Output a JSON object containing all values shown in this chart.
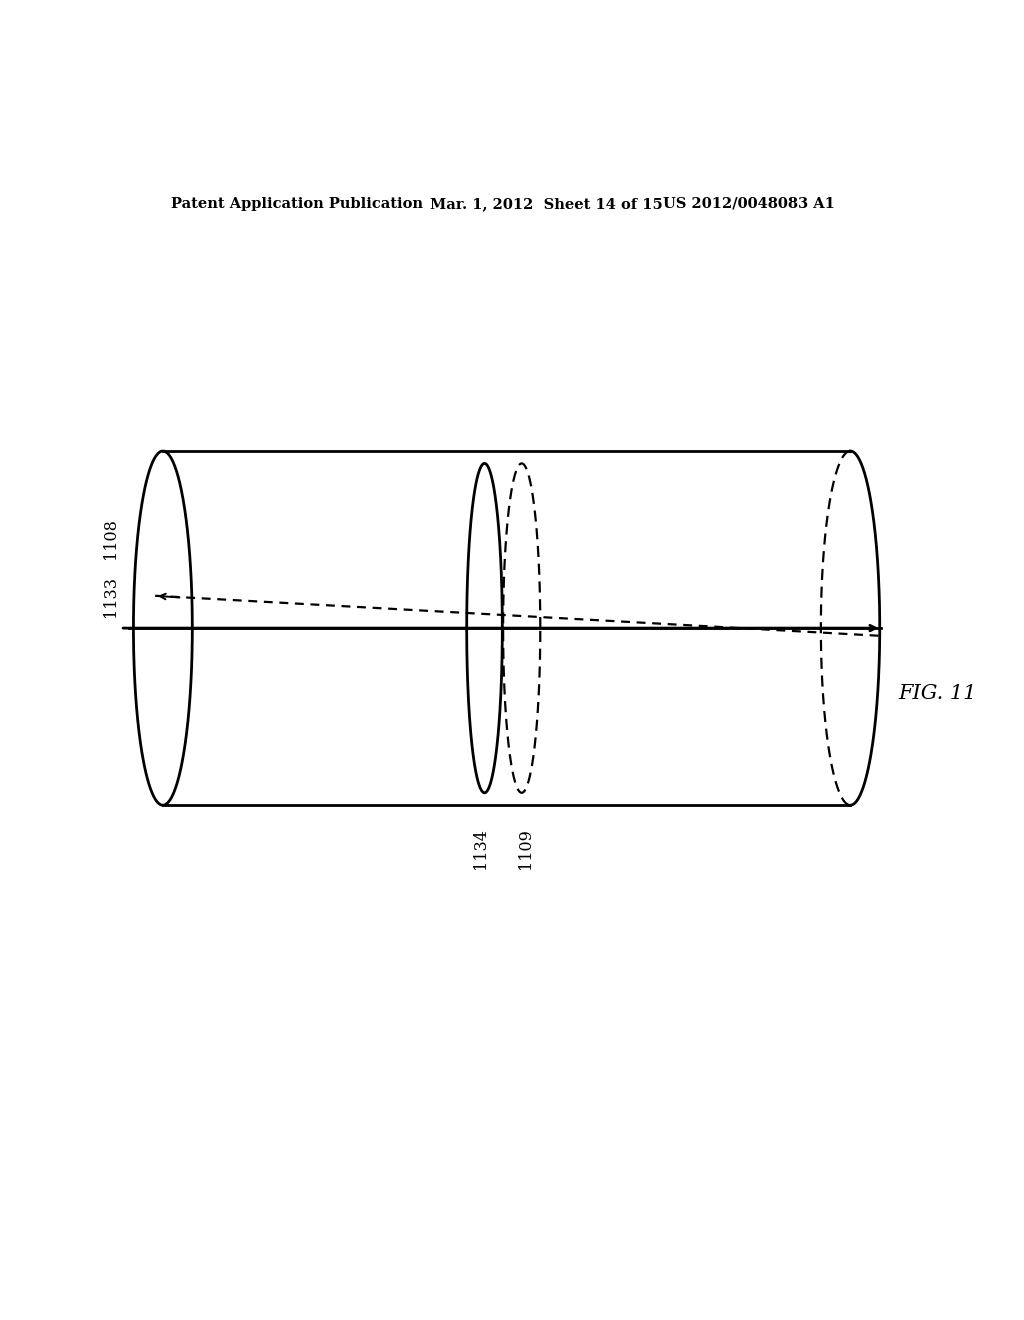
{
  "header_left": "Patent Application Publication",
  "header_mid": "Mar. 1, 2012  Sheet 14 of 15",
  "header_right": "US 2012/0048083 A1",
  "fig_label": "FIG. 11",
  "label_1108": "1108",
  "label_1133": "1133",
  "label_1134": "1134",
  "label_1109": "1109",
  "bg_color": "#ffffff",
  "line_color": "#000000",
  "linewidth": 2.0,
  "dashed_linewidth": 1.6,
  "header_fontsize": 10.5,
  "label_fontsize": 11.5,
  "fig_label_fontsize": 15
}
